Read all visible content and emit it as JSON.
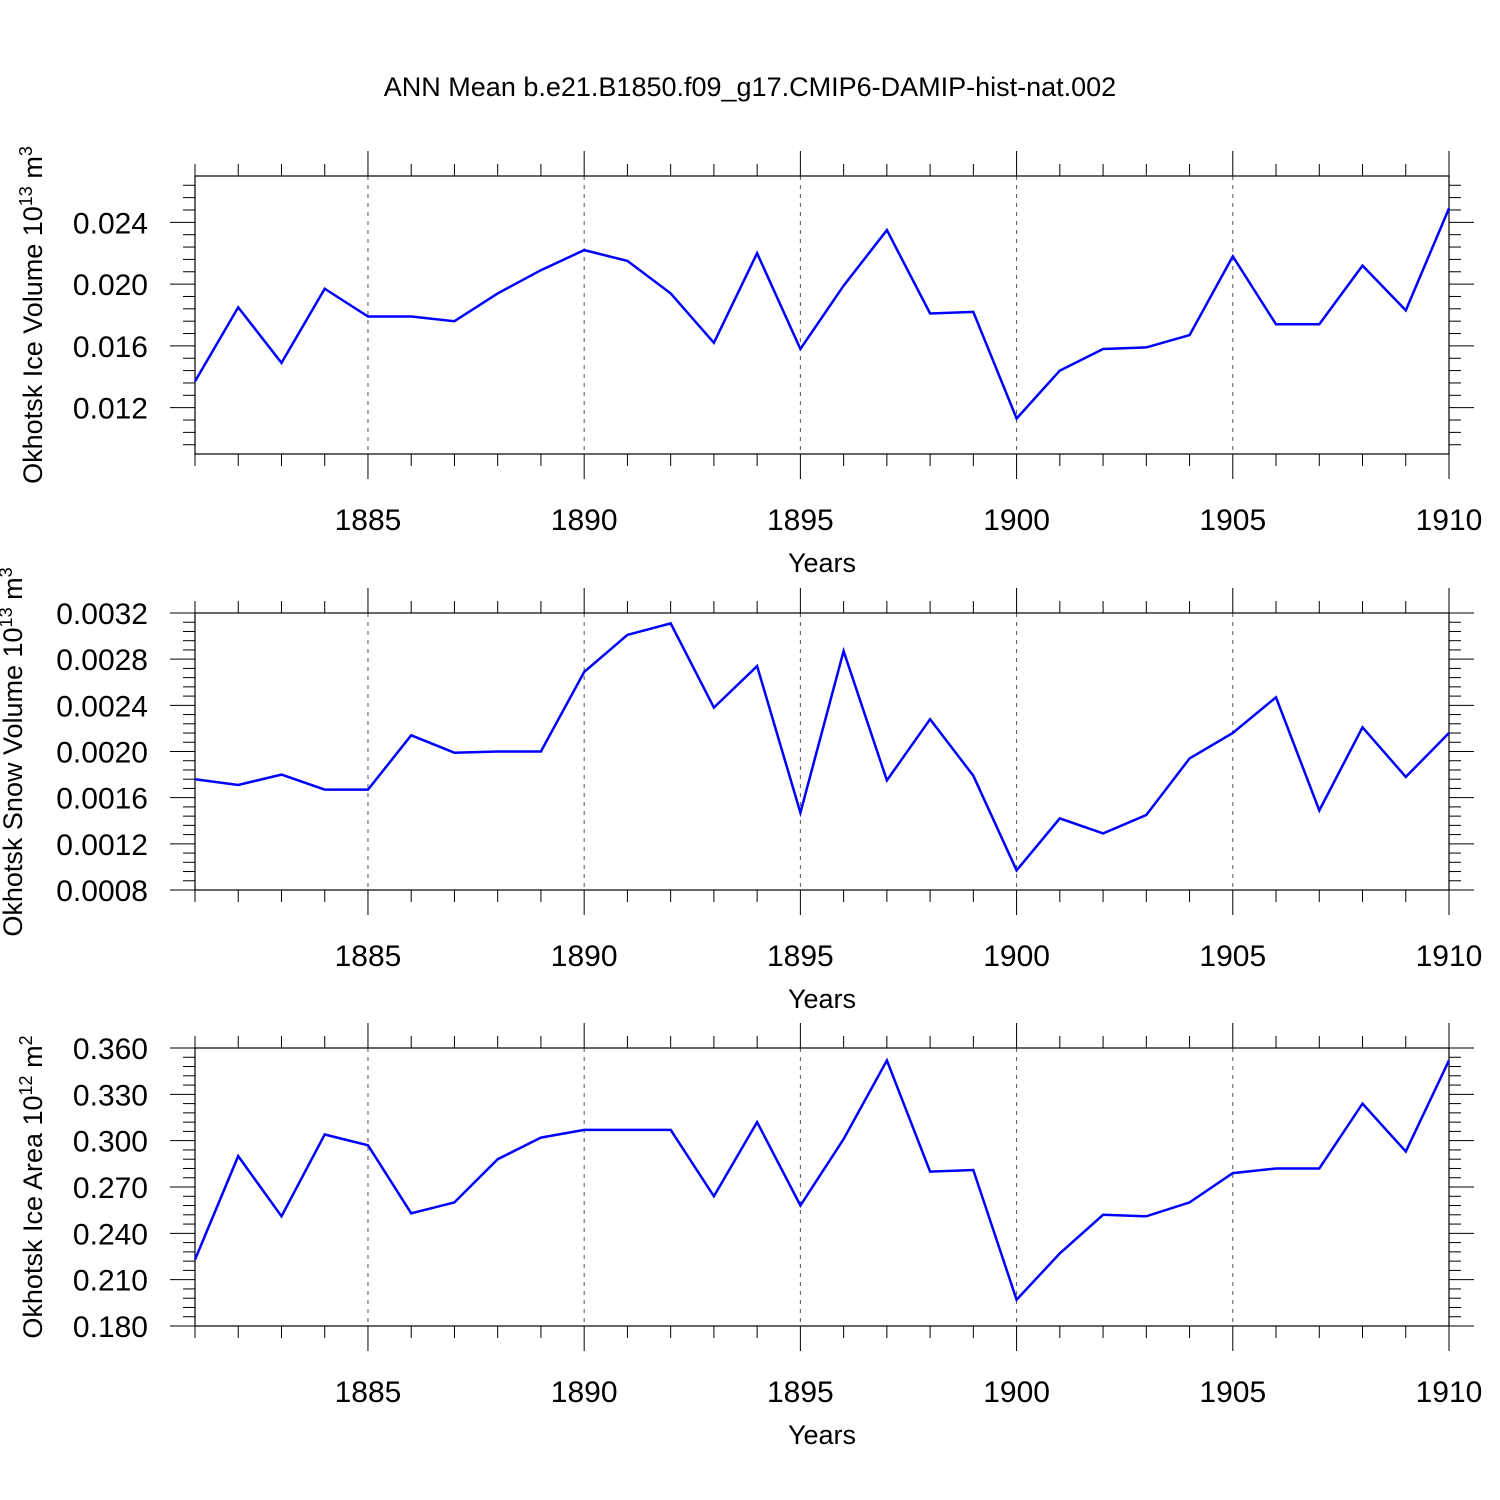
{
  "title": "ANN Mean b.e21.B1850.f09_g17.CMIP6-DAMIP-hist-nat.002",
  "line_color": "#0000ff",
  "chart_data": [
    {
      "type": "line",
      "name_label": "Okhotsk Ice Volume 10",
      "unit_exp": "13",
      "unit_tail": " m",
      "unit_pow": "3",
      "xlabel": "Years",
      "xlim": [
        1881,
        1910
      ],
      "ylim": [
        0.009,
        0.027
      ],
      "xticks": [
        1885,
        1890,
        1895,
        1900,
        1905,
        1910
      ],
      "xtick_labels": [
        "1885",
        "1890",
        "1895",
        "1900",
        "1905",
        "1910"
      ],
      "yticks": [
        0.012,
        0.016,
        0.02,
        0.024
      ],
      "ytick_labels": [
        "0.012",
        "0.016",
        "0.020",
        "0.024"
      ],
      "grid": "dashed vertical at major x ticks",
      "x": [
        1881,
        1882,
        1883,
        1884,
        1885,
        1886,
        1887,
        1888,
        1889,
        1890,
        1891,
        1892,
        1893,
        1894,
        1895,
        1896,
        1897,
        1898,
        1899,
        1900,
        1901,
        1902,
        1903,
        1904,
        1905,
        1906,
        1907,
        1908,
        1909,
        1910
      ],
      "values": [
        0.0137,
        0.0185,
        0.0149,
        0.0197,
        0.0179,
        0.0179,
        0.0176,
        0.0194,
        0.0209,
        0.0222,
        0.0215,
        0.0194,
        0.0162,
        0.022,
        0.0158,
        0.0199,
        0.0235,
        0.0181,
        0.0182,
        0.0113,
        0.0144,
        0.0158,
        0.0159,
        0.0167,
        0.0218,
        0.0174,
        0.0174,
        0.0212,
        0.0183,
        0.0249
      ]
    },
    {
      "type": "line",
      "name_label": "Okhotsk Snow Volume 10",
      "unit_exp": "13",
      "unit_tail": " m",
      "unit_pow": "3",
      "xlabel": "Years",
      "xlim": [
        1881,
        1910
      ],
      "ylim": [
        0.0008,
        0.0032
      ],
      "xticks": [
        1885,
        1890,
        1895,
        1900,
        1905,
        1910
      ],
      "xtick_labels": [
        "1885",
        "1890",
        "1895",
        "1900",
        "1905",
        "1910"
      ],
      "yticks": [
        0.0008,
        0.0012,
        0.0016,
        0.002,
        0.0024,
        0.0028,
        0.0032
      ],
      "ytick_labels": [
        "0.0008",
        "0.0012",
        "0.0016",
        "0.0020",
        "0.0024",
        "0.0028",
        "0.0032"
      ],
      "grid": "dashed vertical at major x ticks",
      "x": [
        1881,
        1882,
        1883,
        1884,
        1885,
        1886,
        1887,
        1888,
        1889,
        1890,
        1891,
        1892,
        1893,
        1894,
        1895,
        1896,
        1897,
        1898,
        1899,
        1900,
        1901,
        1902,
        1903,
        1904,
        1905,
        1906,
        1907,
        1908,
        1909,
        1910
      ],
      "values": [
        0.00176,
        0.00171,
        0.0018,
        0.00167,
        0.00167,
        0.00214,
        0.00199,
        0.002,
        0.002,
        0.00269,
        0.00301,
        0.00311,
        0.00238,
        0.00274,
        0.00147,
        0.00287,
        0.00175,
        0.00228,
        0.00179,
        0.00097,
        0.00142,
        0.00129,
        0.00145,
        0.00194,
        0.00216,
        0.00247,
        0.00149,
        0.00221,
        0.00178,
        0.00216
      ]
    },
    {
      "type": "line",
      "name_label": "Okhotsk Ice Area 10",
      "unit_exp": "12",
      "unit_tail": " m",
      "unit_pow": "2",
      "xlabel": "Years",
      "xlim": [
        1881,
        1910
      ],
      "ylim": [
        0.18,
        0.36
      ],
      "xticks": [
        1885,
        1890,
        1895,
        1900,
        1905,
        1910
      ],
      "xtick_labels": [
        "1885",
        "1890",
        "1895",
        "1900",
        "1905",
        "1910"
      ],
      "yticks": [
        0.18,
        0.21,
        0.24,
        0.27,
        0.3,
        0.33,
        0.36
      ],
      "ytick_labels": [
        "0.180",
        "0.210",
        "0.240",
        "0.270",
        "0.300",
        "0.330",
        "0.360"
      ],
      "grid": "dashed vertical at major x ticks",
      "x": [
        1881,
        1882,
        1883,
        1884,
        1885,
        1886,
        1887,
        1888,
        1889,
        1890,
        1891,
        1892,
        1893,
        1894,
        1895,
        1896,
        1897,
        1898,
        1899,
        1900,
        1901,
        1902,
        1903,
        1904,
        1905,
        1906,
        1907,
        1908,
        1909,
        1910
      ],
      "values": [
        0.223,
        0.29,
        0.251,
        0.304,
        0.297,
        0.253,
        0.26,
        0.288,
        0.302,
        0.307,
        0.307,
        0.307,
        0.264,
        0.312,
        0.258,
        0.301,
        0.352,
        0.28,
        0.281,
        0.197,
        0.227,
        0.252,
        0.251,
        0.26,
        0.279,
        0.282,
        0.282,
        0.324,
        0.293,
        0.352
      ]
    }
  ]
}
